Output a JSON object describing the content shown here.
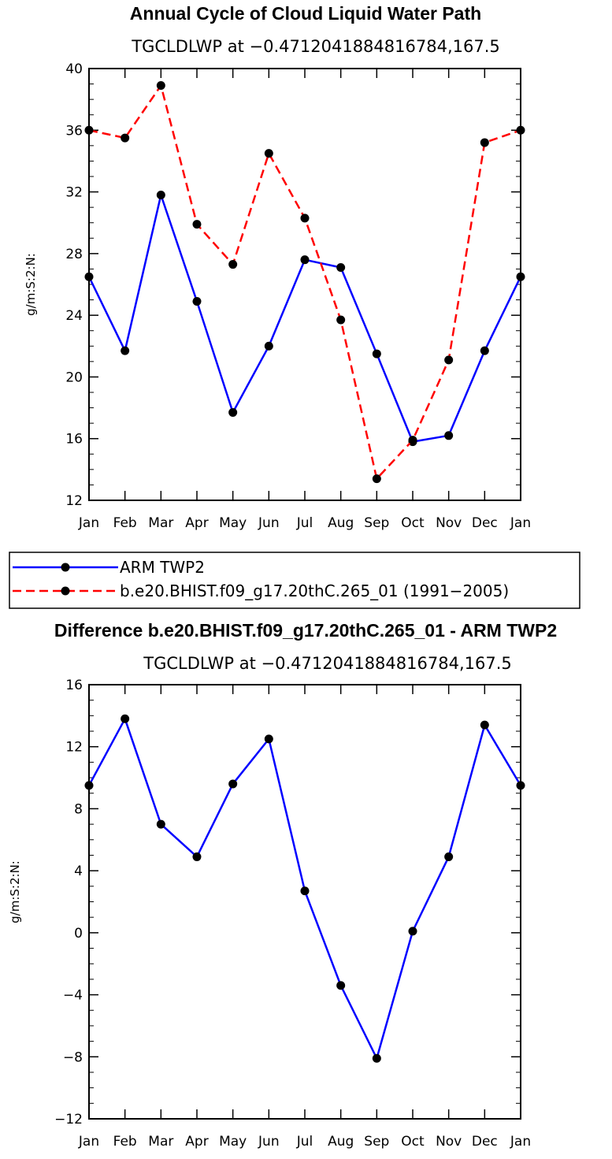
{
  "chart_data": [
    {
      "type": "line",
      "title": "Annual Cycle of Cloud Liquid Water Path",
      "subtitle": "TGCLDLWP at −0.4712041884816784,167.5",
      "xlabel": "",
      "ylabel": "g/m:S:2:N:",
      "categories": [
        "Jan",
        "Feb",
        "Mar",
        "Apr",
        "May",
        "Jun",
        "Jul",
        "Aug",
        "Sep",
        "Oct",
        "Nov",
        "Dec",
        "Jan"
      ],
      "ylim": [
        12,
        40
      ],
      "yticks": [
        12,
        16,
        20,
        24,
        28,
        32,
        36,
        40
      ],
      "ytick_labels": [
        "12",
        "16",
        "20",
        "24",
        "28",
        "32",
        "36",
        "40"
      ],
      "series": [
        {
          "name": "ARM  TWP2",
          "color": "#0000ff",
          "dash": "solid",
          "values": [
            26.5,
            21.7,
            31.8,
            24.9,
            17.7,
            22.0,
            27.6,
            27.1,
            21.5,
            15.8,
            16.2,
            21.7,
            26.5
          ]
        },
        {
          "name": "b.e20.BHIST.f09_g17.20thC.265_01  (1991−2005)",
          "color": "#ff0000",
          "dash": "dashed",
          "values": [
            36.0,
            35.5,
            38.9,
            29.9,
            27.3,
            34.5,
            30.3,
            23.7,
            13.4,
            15.9,
            21.1,
            35.2,
            36.0
          ]
        }
      ],
      "legend_position": "below"
    },
    {
      "type": "line",
      "title": "Difference b.e20.BHIST.f09_g17.20thC.265_01 - ARM TWP2",
      "subtitle": "TGCLDLWP at −0.4712041884816784,167.5",
      "xlabel": "",
      "ylabel": "g/m:S:2:N:",
      "categories": [
        "Jan",
        "Feb",
        "Mar",
        "Apr",
        "May",
        "Jun",
        "Jul",
        "Aug",
        "Sep",
        "Oct",
        "Nov",
        "Dec",
        "Jan"
      ],
      "ylim": [
        -12,
        16
      ],
      "yticks": [
        -12,
        -8,
        -4,
        0,
        4,
        8,
        12,
        16
      ],
      "ytick_labels": [
        "−12",
        "−8",
        "−4",
        "0",
        "4",
        "8",
        "12",
        "16"
      ],
      "series": [
        {
          "name": "Difference",
          "color": "#0000ff",
          "dash": "solid",
          "values": [
            9.5,
            13.8,
            7.0,
            4.9,
            9.6,
            12.5,
            2.7,
            -3.4,
            -8.1,
            0.1,
            4.9,
            13.4,
            9.5
          ]
        }
      ]
    }
  ]
}
